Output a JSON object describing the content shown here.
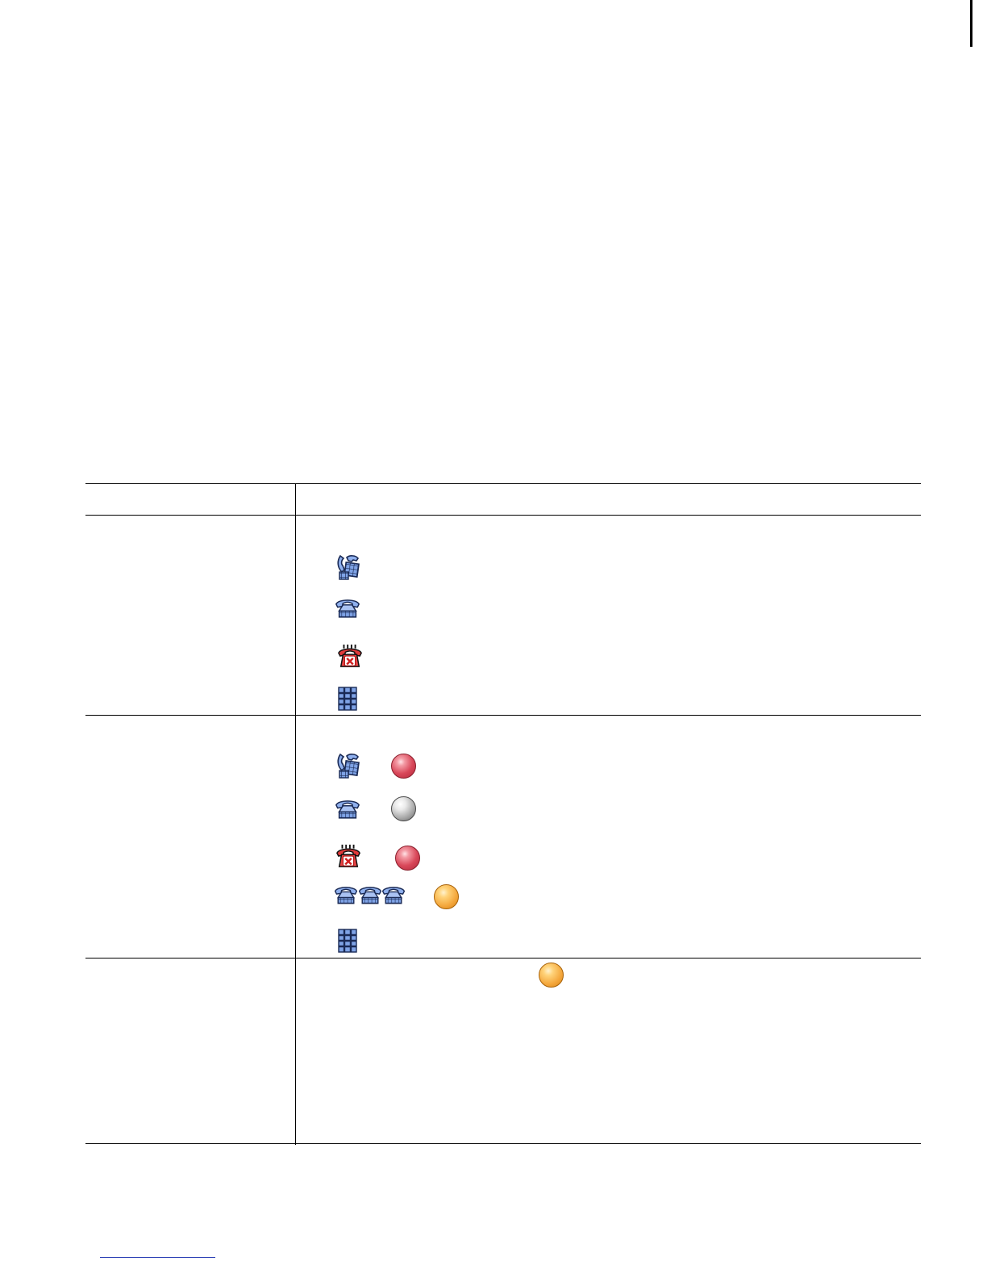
{
  "icons": {
    "shared_line": "shared-line-phone-icon",
    "phone": "phone-icon",
    "do_not_disturb": "dnd-phone-icon",
    "keypad": "keypad-grid-icon",
    "multiple_calls": "multiple-phones-icon"
  },
  "status_colors": {
    "red": "#d9485a",
    "gray": "#9c9c9c",
    "amber": "#f4a73c",
    "icon_blue": "#6f92d8"
  }
}
